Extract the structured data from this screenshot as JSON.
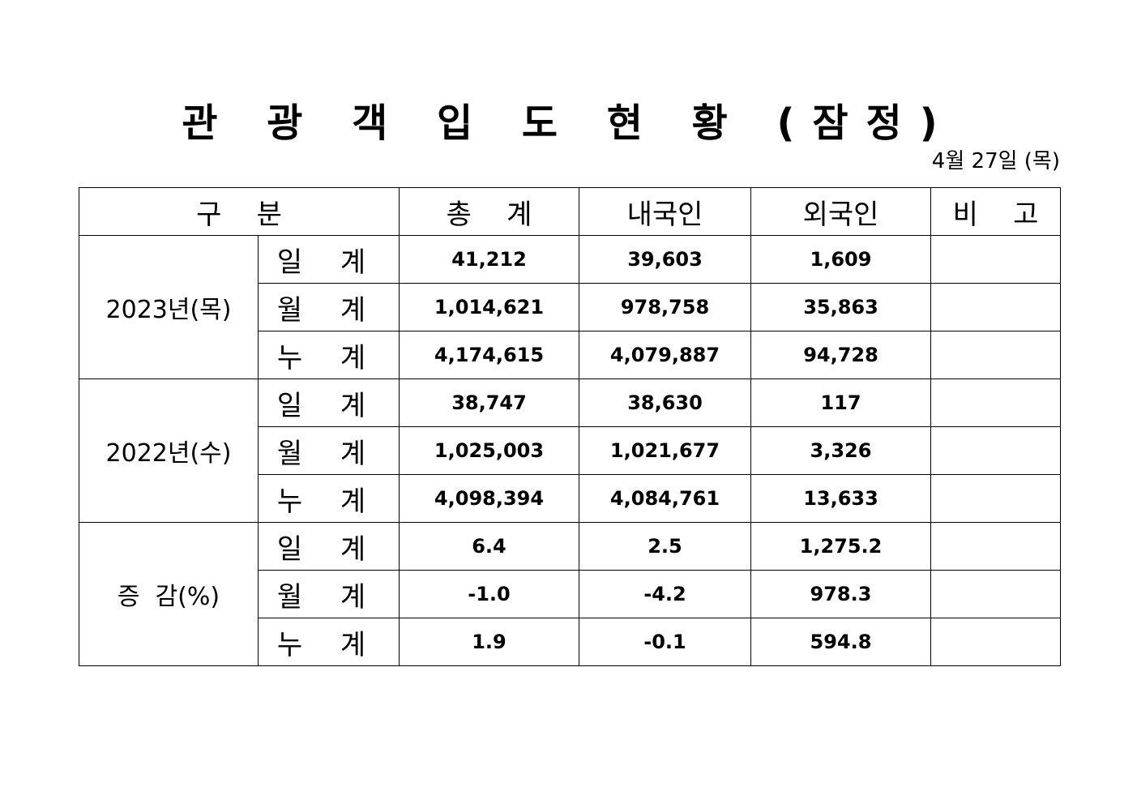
{
  "title": "관 광 객 입 도 현 황 (잠정)",
  "date": "4월  27일  (목)",
  "headers": [
    "구    분",
    "총    계",
    "내국인",
    "외국인",
    "비    고"
  ],
  "groups": [
    {
      "label": "2023년(목)",
      "rows": [
        {
          "sub": "일 계",
          "total": "41,212",
          "domestic": "39,603",
          "foreign": "1,609",
          "note": ""
        },
        {
          "sub": "월 계",
          "total": "1,014,621",
          "domestic": "978,758",
          "foreign": "35,863",
          "note": ""
        },
        {
          "sub": "누 계",
          "total": "4,174,615",
          "domestic": "4,079,887",
          "foreign": "94,728",
          "note": ""
        }
      ]
    },
    {
      "label": "2022년(수)",
      "rows": [
        {
          "sub": "일 계",
          "total": "38,747",
          "domestic": "38,630",
          "foreign": "117",
          "note": ""
        },
        {
          "sub": "월 계",
          "total": "1,025,003",
          "domestic": "1,021,677",
          "foreign": "3,326",
          "note": ""
        },
        {
          "sub": "누 계",
          "total": "4,098,394",
          "domestic": "4,084,761",
          "foreign": "13,633",
          "note": ""
        }
      ]
    },
    {
      "label": "증  감(%)",
      "rows": [
        {
          "sub": "일 계",
          "total": "6.4",
          "domestic": "2.5",
          "foreign": "1,275.2",
          "note": ""
        },
        {
          "sub": "월 계",
          "total": "-1.0",
          "domestic": "-4.2",
          "foreign": "978.3",
          "note": ""
        },
        {
          "sub": "누 계",
          "total": "1.9",
          "domestic": "-0.1",
          "foreign": "594.8",
          "note": ""
        }
      ]
    }
  ]
}
